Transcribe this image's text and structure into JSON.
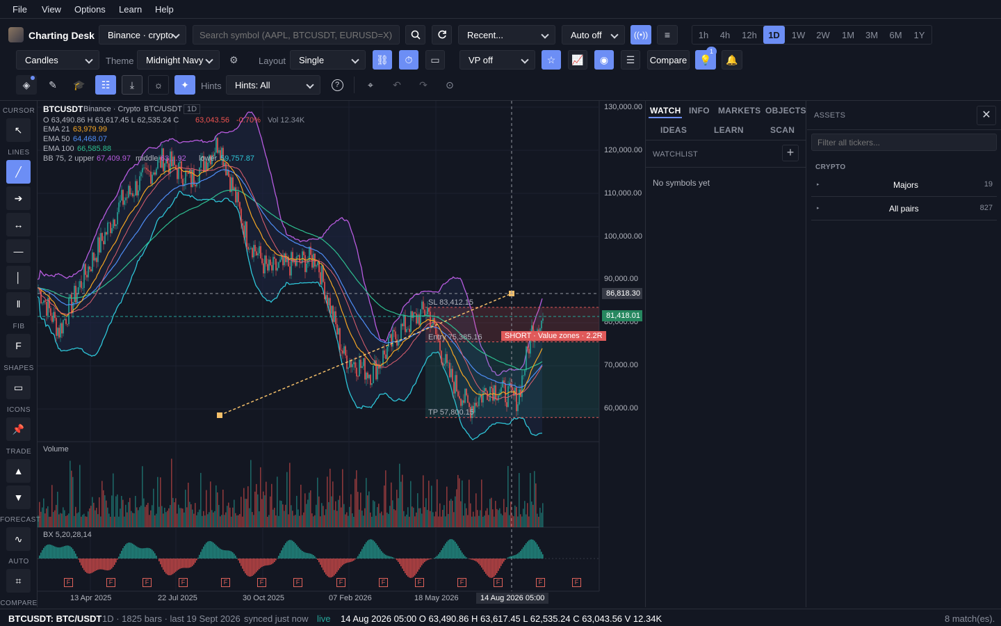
{
  "menu": [
    "File",
    "View",
    "Options",
    "Learn",
    "Help"
  ],
  "app": {
    "title": "Charting Desk"
  },
  "toolbar1": {
    "exchange": "Binance · crypto",
    "search_placeholder": "Search symbol (AAPL, BTCUSDT, EURUSD=X)",
    "recent": "Recent...",
    "auto": "Auto off",
    "timeframes": [
      "1h",
      "4h",
      "12h",
      "1D",
      "1W",
      "2W",
      "1M",
      "3M",
      "6M",
      "1Y"
    ],
    "active_tf": "1D"
  },
  "toolbar2": {
    "chart_type": "Candles",
    "theme_label": "Theme",
    "theme": "Midnight Navy",
    "layout_label": "Layout",
    "layout": "Single",
    "vp": "VP off",
    "compare": "Compare",
    "notif_badge": "1"
  },
  "toolbar3": {
    "hints_label": "Hints",
    "hints": "Hints: All"
  },
  "left_tools": {
    "sections": [
      "CURSOR",
      "LINES",
      "FIB",
      "SHAPES",
      "ICONS",
      "TRADE",
      "FORECAST",
      "AUTO",
      "COMPARE"
    ],
    "fib_glyph": "F"
  },
  "legend": {
    "symbol": "BTCUSDT",
    "source": "Binance · Crypto",
    "pair": "BTC/USDT",
    "tf": "1D",
    "ohlc": "O 63,490.86   H 63,617.45   L 62,535.24   C",
    "close": "63,043.56",
    "change": "-0.70%",
    "vol": "Vol 12.34K",
    "ema21_label": "EMA 21",
    "ema21": "63,979.99",
    "ema50_label": "EMA 50",
    "ema50": "64,468.07",
    "ema100_label": "EMA 100",
    "ema100": "66,585.88",
    "bb_label": "BB 75, 2  upper",
    "bb_upper": "67,409.97",
    "bb_mid_label": "middle",
    "bb_mid": "63,...92",
    "bb_low_label": "lower",
    "bb_lower": "59,757.87"
  },
  "price_axis": [
    "130,000.00",
    "120,000.00",
    "110,000.00",
    "100,000.00",
    "90,000.00",
    "80,000.00",
    "70,000.00",
    "60,000.00"
  ],
  "price_tags": {
    "crosshair": "86,818.30",
    "last": "81,418.01"
  },
  "trade": {
    "sl": "SL 83,412.15",
    "entry": "Entry 75,385.16",
    "tp": "TP 57,800.15",
    "label": "SHORT · Value zones · 2.2R"
  },
  "panes": {
    "volume": "Volume",
    "osc": "BX 5,20,28,14",
    "fmark": "F"
  },
  "date_axis": [
    "13 Apr 2025",
    "22 Jul 2025",
    "30 Oct 2025",
    "07 Feb 2026",
    "18 May 2026"
  ],
  "date_cursor": "14 Aug 2026 05:00",
  "right1": {
    "tabs": [
      "WATCH",
      "INFO",
      "MARKETS",
      "OBJECTS"
    ],
    "tabs2": [
      "IDEAS",
      "LEARN",
      "SCAN"
    ],
    "watchlist": "WATCHLIST",
    "empty": "No symbols yet"
  },
  "right2": {
    "title": "ASSETS",
    "filter_placeholder": "Filter all tickers...",
    "group": "CRYPTO",
    "rows": [
      {
        "name": "Majors",
        "count": "19"
      },
      {
        "name": "All pairs",
        "count": "827"
      }
    ]
  },
  "status": {
    "symbol": "BTCUSDT: BTC/USDT",
    "info": "1D · 1825 bars · last 19 Sept 2026",
    "sync": "synced just now",
    "live": "live",
    "bar": "14 Aug 2026 05:00 O 63,490.86 H 63,617.45 L 62,535.24 C 63,043.56 V 12.34K",
    "matches": "8 match(es)."
  },
  "colors": {
    "accent": "#6c8ef5",
    "up": "#26a69a",
    "down": "#ef5350",
    "ema21": "#f5a623",
    "ema50": "#4f8ef7",
    "ema100": "#2ebf91",
    "bb": "#b85ce0"
  }
}
